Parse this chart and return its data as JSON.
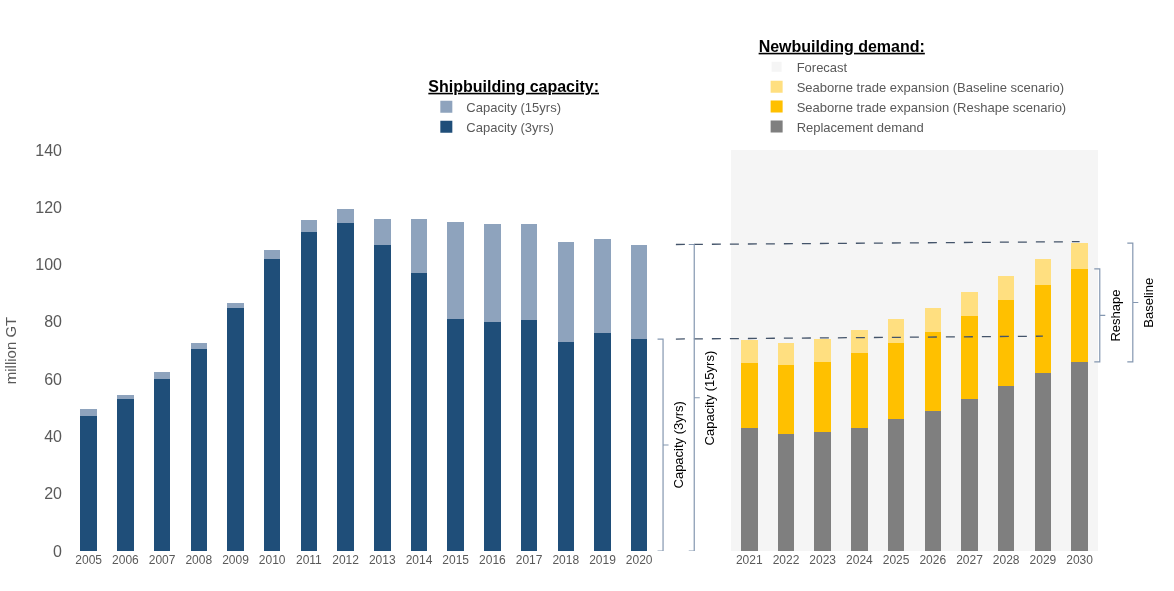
{
  "chart_data": {
    "type": "bar",
    "stacked": true,
    "categories": [
      "2005",
      "2006",
      "2007",
      "2008",
      "2009",
      "2010",
      "2011",
      "2012",
      "2013",
      "2014",
      "2015",
      "2016",
      "2017",
      "2018",
      "2019",
      "2020",
      null,
      null,
      "2021",
      "2022",
      "2023",
      "2024",
      "2025",
      "2026",
      "2027",
      "2028",
      "2029",
      "2030"
    ],
    "ylabel": "million GT",
    "ylim": [
      0,
      140
    ],
    "yticks": [
      0,
      20,
      40,
      60,
      80,
      100,
      120,
      140
    ],
    "legend_title": [
      "Shipbuilding capacity:",
      "Newbuilding demand:"
    ],
    "legend": "top",
    "grid": false,
    "series": [
      {
        "name": "Capacity (3yrs)",
        "color": "#1f4e79",
        "values": [
          47,
          53,
          60,
          70.5,
          85,
          102,
          111.5,
          114.5,
          107,
          97,
          81,
          80,
          80.5,
          73,
          76,
          74,
          null,
          null,
          null,
          null,
          null,
          null,
          null,
          null,
          null,
          null,
          null,
          null
        ]
      },
      {
        "name": "Capacity (15yrs)",
        "color": "#8ea3bd",
        "values": [
          2.5,
          1.5,
          2.5,
          2,
          1.5,
          3,
          4,
          5,
          9,
          19,
          34,
          34,
          33.5,
          35,
          33,
          33,
          null,
          null,
          null,
          null,
          null,
          null,
          null,
          null,
          null,
          null,
          null,
          null
        ]
      },
      {
        "name": "Replacement demand",
        "color": "#7f7f7f",
        "values": [
          null,
          null,
          null,
          null,
          null,
          null,
          null,
          null,
          null,
          null,
          null,
          null,
          null,
          null,
          null,
          null,
          null,
          null,
          43,
          41,
          41.5,
          43,
          46,
          49,
          53,
          57.5,
          62,
          66
        ]
      },
      {
        "name": "Seaborne trade expansion (Reshape scenario)",
        "color": "#ffc000",
        "values": [
          null,
          null,
          null,
          null,
          null,
          null,
          null,
          null,
          null,
          null,
          null,
          null,
          null,
          null,
          null,
          null,
          null,
          null,
          22.5,
          24,
          24.5,
          26,
          26.5,
          27.5,
          29,
          30,
          31,
          32.5
        ]
      },
      {
        "name": "Seaborne trade expansion (Baseline scenario)",
        "color": "#ffdf80",
        "values": [
          null,
          null,
          null,
          null,
          null,
          null,
          null,
          null,
          null,
          null,
          null,
          null,
          null,
          null,
          null,
          null,
          null,
          null,
          8,
          7.5,
          8,
          8,
          8.5,
          8.5,
          8.5,
          8.5,
          9,
          9
        ]
      },
      {
        "type": "line",
        "line_style": "dashed",
        "color": "#44546a",
        "values": [
          null,
          null,
          null,
          null,
          null,
          null,
          null,
          null,
          null,
          null,
          null,
          null,
          null,
          null,
          null,
          null,
          107,
          null,
          null,
          null,
          null,
          null,
          null,
          null,
          null,
          null,
          null,
          108
        ]
      },
      {
        "type": "line",
        "line_style": "dashed",
        "color": "#44546a",
        "values": [
          null,
          null,
          null,
          null,
          null,
          null,
          null,
          null,
          null,
          null,
          null,
          null,
          null,
          null,
          null,
          null,
          74,
          null,
          null,
          null,
          null,
          null,
          null,
          null,
          null,
          null,
          75,
          null
        ]
      }
    ],
    "bands": [
      {
        "axis": "x",
        "from": "2021",
        "to": "2030",
        "label": "Forecast",
        "color": "#f5f5f5"
      }
    ],
    "annotations": [
      "Capacity (3yrs)",
      "Capacity (15yrs)",
      "Reshape",
      "Baseline"
    ]
  }
}
